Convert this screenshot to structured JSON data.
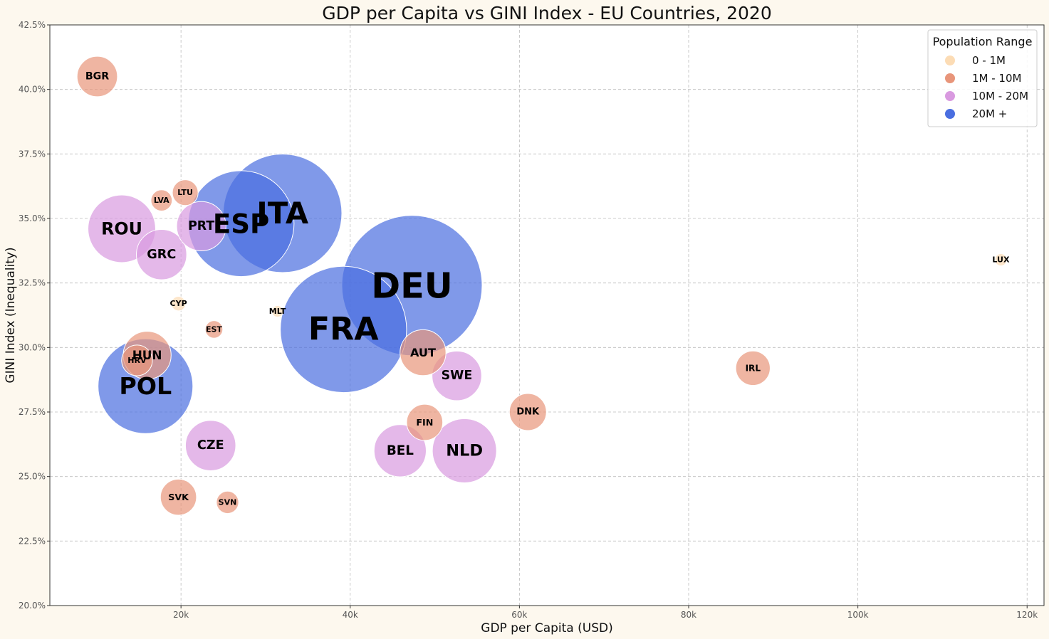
{
  "chart_data": {
    "type": "scatter",
    "title": "GDP per Capita vs GINI Index - EU Countries, 2020",
    "xlabel": "GDP per Capita (USD)",
    "ylabel": "GINI Index (Inequality)",
    "xlim": [
      4500,
      122000
    ],
    "ylim": [
      20.0,
      42.5
    ],
    "x_ticks": [
      20000,
      40000,
      60000,
      80000,
      100000,
      120000
    ],
    "x_tick_labels": [
      "20k",
      "40k",
      "60k",
      "80k",
      "100k",
      "120k"
    ],
    "y_ticks": [
      20.0,
      22.5,
      25.0,
      27.5,
      30.0,
      32.5,
      35.0,
      37.5,
      40.0,
      42.5
    ],
    "y_tick_labels": [
      "20.0%",
      "22.5%",
      "25.0%",
      "27.5%",
      "30.0%",
      "32.5%",
      "35.0%",
      "37.5%",
      "40.0%",
      "42.5%"
    ],
    "grid": true,
    "legend": {
      "title": "Population Range",
      "placement": "top-right",
      "entries": [
        {
          "label": "0 - 1M",
          "color": "#fcdcb5"
        },
        {
          "label": "1M - 10M",
          "color": "#e8957a"
        },
        {
          "label": "10M - 20M",
          "color": "#d99ae0"
        },
        {
          "label": "20M +",
          "color": "#4a6ee0"
        }
      ]
    },
    "bubble_alpha": 0.7,
    "points": [
      {
        "label": "BGR",
        "x": 10100,
        "y": 40.5,
        "population_millions": 6.9,
        "group": 1
      },
      {
        "label": "LTU",
        "x": 20500,
        "y": 36.0,
        "population_millions": 2.8,
        "group": 1
      },
      {
        "label": "LVA",
        "x": 17700,
        "y": 35.7,
        "population_millions": 1.9,
        "group": 1
      },
      {
        "label": "ROU",
        "x": 13000,
        "y": 34.6,
        "population_millions": 19.3,
        "group": 2
      },
      {
        "label": "PRT",
        "x": 22400,
        "y": 34.7,
        "population_millions": 10.3,
        "group": 2
      },
      {
        "label": "ESP",
        "x": 27100,
        "y": 34.8,
        "population_millions": 47.4,
        "group": 3
      },
      {
        "label": "ITA",
        "x": 32000,
        "y": 35.2,
        "population_millions": 59.5,
        "group": 3
      },
      {
        "label": "GRC",
        "x": 17700,
        "y": 33.6,
        "population_millions": 10.7,
        "group": 2
      },
      {
        "label": "LUX",
        "x": 116900,
        "y": 33.4,
        "population_millions": 0.63,
        "group": 0
      },
      {
        "label": "DEU",
        "x": 47300,
        "y": 32.4,
        "population_millions": 83.2,
        "group": 3
      },
      {
        "label": "CYP",
        "x": 19700,
        "y": 31.7,
        "population_millions": 0.89,
        "group": 0
      },
      {
        "label": "MLT",
        "x": 31400,
        "y": 31.4,
        "population_millions": 0.52,
        "group": 0
      },
      {
        "label": "FRA",
        "x": 39200,
        "y": 30.7,
        "population_millions": 67.4,
        "group": 3
      },
      {
        "label": "EST",
        "x": 23900,
        "y": 30.7,
        "population_millions": 1.3,
        "group": 1
      },
      {
        "label": "AUT",
        "x": 48600,
        "y": 29.8,
        "population_millions": 8.9,
        "group": 1
      },
      {
        "label": "HUN",
        "x": 16000,
        "y": 29.7,
        "population_millions": 9.7,
        "group": 1
      },
      {
        "label": "HRV",
        "x": 14800,
        "y": 29.5,
        "population_millions": 4.0,
        "group": 1
      },
      {
        "label": "IRL",
        "x": 87600,
        "y": 29.2,
        "population_millions": 5.0,
        "group": 1
      },
      {
        "label": "SWE",
        "x": 52600,
        "y": 28.9,
        "population_millions": 10.4,
        "group": 2
      },
      {
        "label": "POL",
        "x": 15800,
        "y": 28.5,
        "population_millions": 38.0,
        "group": 3
      },
      {
        "label": "DNK",
        "x": 61000,
        "y": 27.5,
        "population_millions": 5.8,
        "group": 1
      },
      {
        "label": "FIN",
        "x": 48800,
        "y": 27.1,
        "population_millions": 5.5,
        "group": 1
      },
      {
        "label": "CZE",
        "x": 23500,
        "y": 26.2,
        "population_millions": 10.7,
        "group": 2
      },
      {
        "label": "BEL",
        "x": 45900,
        "y": 26.0,
        "population_millions": 11.5,
        "group": 2
      },
      {
        "label": "NLD",
        "x": 53500,
        "y": 26.0,
        "population_millions": 17.4,
        "group": 2
      },
      {
        "label": "SVK",
        "x": 19700,
        "y": 24.2,
        "population_millions": 5.5,
        "group": 1
      },
      {
        "label": "SVN",
        "x": 25500,
        "y": 24.0,
        "population_millions": 2.1,
        "group": 1
      }
    ]
  }
}
